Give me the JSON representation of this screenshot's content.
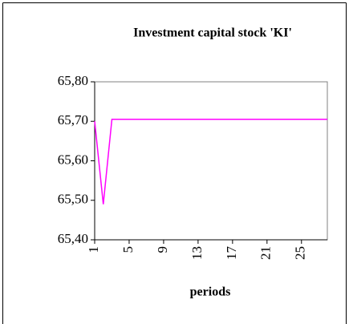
{
  "chart_data": {
    "type": "line",
    "title": "Investment capital stock 'KI'",
    "x_label": "periods",
    "x": [
      1,
      2,
      3,
      4,
      5,
      6,
      7,
      8,
      9,
      10,
      11,
      12,
      13,
      14,
      15,
      16,
      17,
      18,
      19,
      20,
      21,
      22,
      23,
      24,
      25,
      26,
      27,
      28
    ],
    "series": [
      {
        "name": "KI",
        "color": "#ff00ff",
        "values": [
          65.7,
          65.49,
          65.705,
          65.705,
          65.705,
          65.705,
          65.705,
          65.705,
          65.705,
          65.705,
          65.705,
          65.705,
          65.705,
          65.705,
          65.705,
          65.705,
          65.705,
          65.705,
          65.705,
          65.705,
          65.705,
          65.705,
          65.705,
          65.705,
          65.705,
          65.705,
          65.705,
          65.705
        ]
      }
    ],
    "xlim": [
      1,
      28
    ],
    "xticks": [
      1,
      5,
      9,
      13,
      17,
      21,
      25
    ],
    "ylim": [
      65.4,
      65.8
    ],
    "yticks": [
      {
        "value": 65.4,
        "label": "65,40"
      },
      {
        "value": 65.5,
        "label": "65,50"
      },
      {
        "value": 65.6,
        "label": "65,60"
      },
      {
        "value": 65.7,
        "label": "65,70"
      },
      {
        "value": 65.8,
        "label": "65,80"
      }
    ]
  }
}
